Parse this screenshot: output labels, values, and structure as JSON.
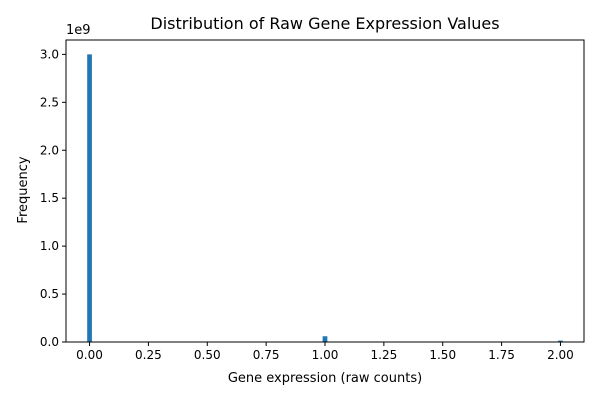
{
  "chart_data": {
    "type": "bar",
    "title": "Distribution of Raw Gene Expression Values",
    "xlabel": "Gene expression (raw counts)",
    "ylabel": "Frequency",
    "y_scale_label": "1e9",
    "xlim": [
      -0.1,
      2.1
    ],
    "ylim": [
      0,
      3150000000
    ],
    "y_scale": 1000000000,
    "bin_width": 0.02,
    "x_ticks": [
      0.0,
      0.25,
      0.5,
      0.75,
      1.0,
      1.25,
      1.5,
      1.75,
      2.0
    ],
    "x_tick_labels": [
      "0.00",
      "0.25",
      "0.50",
      "0.75",
      "1.00",
      "1.25",
      "1.50",
      "1.75",
      "2.00"
    ],
    "y_ticks": [
      0,
      500000000,
      1000000000,
      1500000000,
      2000000000,
      2500000000,
      3000000000
    ],
    "y_tick_labels": [
      "0.0",
      "0.5",
      "1.0",
      "1.5",
      "2.0",
      "2.5",
      "3.0"
    ],
    "bins": [
      {
        "x": 0.0,
        "value": 3000000000
      },
      {
        "x": 1.0,
        "value": 60000000
      },
      {
        "x": 2.0,
        "value": 15000000
      }
    ],
    "grid": false,
    "legend": "none"
  },
  "colors": {
    "bar": "#1f77b4",
    "axis": "#000000",
    "background": "#ffffff"
  }
}
